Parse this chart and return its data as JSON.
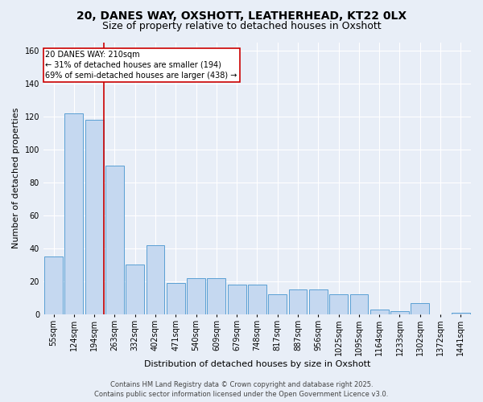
{
  "title1": "20, DANES WAY, OXSHOTT, LEATHERHEAD, KT22 0LX",
  "title2": "Size of property relative to detached houses in Oxshott",
  "xlabel": "Distribution of detached houses by size in Oxshott",
  "ylabel": "Number of detached properties",
  "categories": [
    "55sqm",
    "124sqm",
    "194sqm",
    "263sqm",
    "332sqm",
    "402sqm",
    "471sqm",
    "540sqm",
    "609sqm",
    "679sqm",
    "748sqm",
    "817sqm",
    "887sqm",
    "956sqm",
    "1025sqm",
    "1095sqm",
    "1164sqm",
    "1233sqm",
    "1302sqm",
    "1372sqm",
    "1441sqm"
  ],
  "values": [
    35,
    122,
    118,
    90,
    30,
    42,
    19,
    22,
    22,
    18,
    18,
    12,
    15,
    15,
    12,
    12,
    3,
    2,
    7,
    0,
    1
  ],
  "bar_color": "#c5d8f0",
  "bar_edge_color": "#5a9fd4",
  "red_line_x": 2,
  "annotation_text": "20 DANES WAY: 210sqm\n← 31% of detached houses are smaller (194)\n69% of semi-detached houses are larger (438) →",
  "annotation_box_color": "#ffffff",
  "annotation_box_edge": "#cc0000",
  "red_line_color": "#cc0000",
  "ylim": [
    0,
    165
  ],
  "yticks": [
    0,
    20,
    40,
    60,
    80,
    100,
    120,
    140,
    160
  ],
  "footer_line1": "Contains HM Land Registry data © Crown copyright and database right 2025.",
  "footer_line2": "Contains public sector information licensed under the Open Government Licence v3.0.",
  "background_color": "#e8eef7",
  "plot_background": "#e8eef7",
  "grid_color": "#ffffff",
  "title_fontsize": 10,
  "subtitle_fontsize": 9,
  "ylabel_fontsize": 8,
  "xlabel_fontsize": 8,
  "tick_fontsize": 7,
  "footer_fontsize": 6,
  "annot_fontsize": 7
}
